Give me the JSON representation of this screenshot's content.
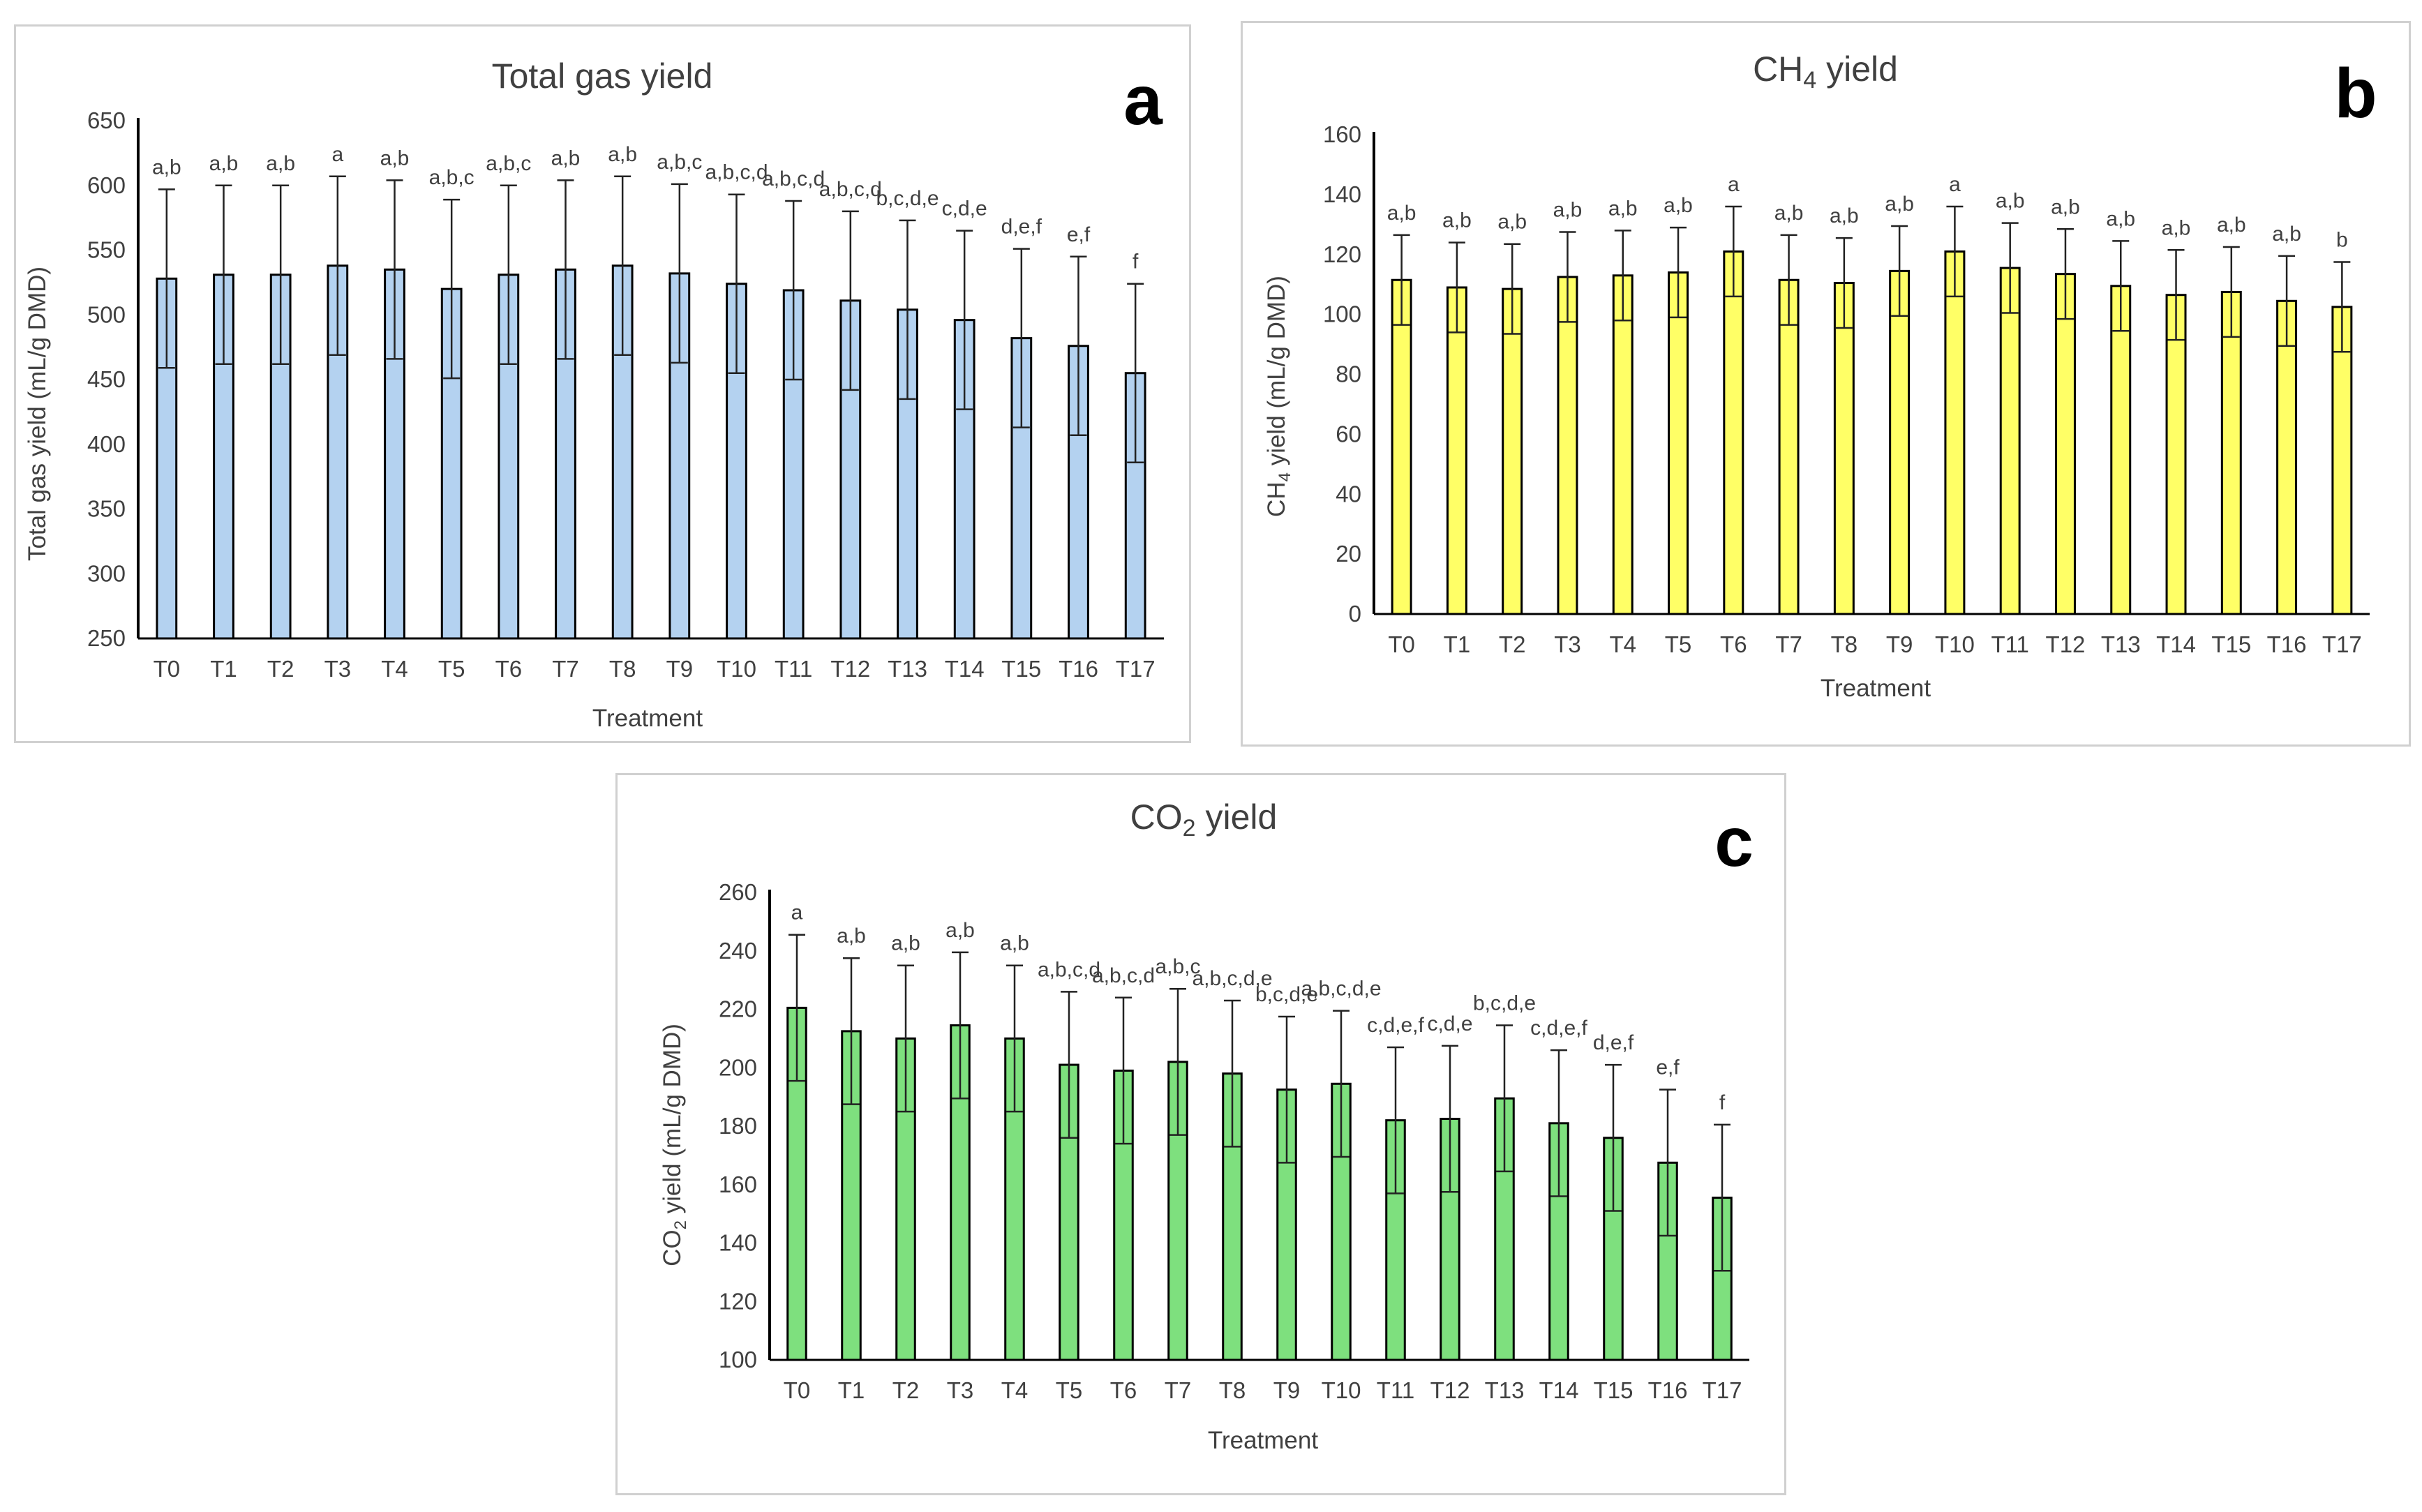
{
  "chart_data": [
    {
      "panel": "a",
      "type": "bar",
      "title": "Total gas yield",
      "title_sub": "",
      "title_end": "",
      "ylabel_pre": "Total gas yield (mL/g DMD)",
      "ylabel_sub": "",
      "ylabel_post": "",
      "xlabel": "Treatment",
      "ylim": [
        250,
        650
      ],
      "yticks": [
        250,
        300,
        350,
        400,
        450,
        500,
        550,
        600,
        650
      ],
      "categories": [
        "T0",
        "T1",
        "T2",
        "T3",
        "T4",
        "T5",
        "T6",
        "T7",
        "T8",
        "T9",
        "T10",
        "T11",
        "T12",
        "T13",
        "T14",
        "T15",
        "T16",
        "T17"
      ],
      "values": [
        528,
        531,
        531,
        538,
        535,
        520,
        531,
        535,
        538,
        532,
        524,
        519,
        511,
        504,
        496,
        482,
        476,
        455
      ],
      "errors": [
        69,
        69,
        69,
        69,
        69,
        69,
        69,
        69,
        69,
        69,
        69,
        69,
        69,
        69,
        69,
        69,
        69,
        69
      ],
      "labels": [
        "a,b",
        "a,b",
        "a,b",
        "a",
        "a,b",
        "a,b,c",
        "a,b,c",
        "a,b",
        "a,b",
        "a,b,c",
        "a,b,c,d",
        "a,b,c,d",
        "a,b,c,d",
        "b,c,d,e",
        "c,d,e",
        "d,e,f",
        "e,f",
        "f"
      ],
      "color": "#b4d2f0"
    },
    {
      "panel": "b",
      "type": "bar",
      "title": "CH",
      "title_sub": "4",
      "title_end": " yield",
      "ylabel_pre": "CH",
      "ylabel_sub": "4",
      "ylabel_post": " yield (mL/g DMD)",
      "xlabel": "Treatment",
      "ylim": [
        0,
        160
      ],
      "yticks": [
        0,
        20,
        40,
        60,
        80,
        100,
        120,
        140,
        160
      ],
      "categories": [
        "T0",
        "T1",
        "T2",
        "T3",
        "T4",
        "T5",
        "T6",
        "T7",
        "T8",
        "T9",
        "T10",
        "T11",
        "T12",
        "T13",
        "T14",
        "T15",
        "T16",
        "T17"
      ],
      "values": [
        111.5,
        109,
        108.5,
        112.5,
        113,
        114,
        121,
        111.5,
        110.5,
        114.5,
        121,
        115.5,
        113.5,
        109.5,
        106.5,
        107.5,
        104.5,
        102.5
      ],
      "errors": [
        15,
        15,
        15,
        15,
        15,
        15,
        15,
        15,
        15,
        15,
        15,
        15,
        15,
        15,
        15,
        15,
        15,
        15
      ],
      "labels": [
        "a,b",
        "a,b",
        "a,b",
        "a,b",
        "a,b",
        "a,b",
        "a",
        "a,b",
        "a,b",
        "a,b",
        "a",
        "a,b",
        "a,b",
        "a,b",
        "a,b",
        "a,b",
        "a,b",
        "b"
      ],
      "color": "#ffff66"
    },
    {
      "panel": "c",
      "type": "bar",
      "title": "CO",
      "title_sub": "2",
      "title_end": " yield",
      "ylabel_pre": "CO",
      "ylabel_sub": "2",
      "ylabel_post": " yield (mL/g DMD)",
      "xlabel": "Treatment",
      "ylim": [
        100,
        260
      ],
      "yticks": [
        100,
        120,
        140,
        160,
        180,
        200,
        220,
        240,
        260
      ],
      "categories": [
        "T0",
        "T1",
        "T2",
        "T3",
        "T4",
        "T5",
        "T6",
        "T7",
        "T8",
        "T9",
        "T10",
        "T11",
        "T12",
        "T13",
        "T14",
        "T15",
        "T16",
        "T17"
      ],
      "values": [
        220.5,
        212.5,
        210,
        214.5,
        210,
        201,
        199,
        202,
        198,
        192.5,
        194.5,
        182,
        182.5,
        189.5,
        181,
        176,
        167.5,
        155.5
      ],
      "errors": [
        25,
        25,
        25,
        25,
        25,
        25,
        25,
        25,
        25,
        25,
        25,
        25,
        25,
        25,
        25,
        25,
        25,
        25
      ],
      "labels": [
        "a",
        "a,b",
        "a,b",
        "a,b",
        "a,b",
        "a,b,c,d",
        "a,b,c,d",
        "a,b,c",
        "a,b,c,d,e",
        "b,c,d,e",
        "a,b,c,d,e",
        "c,d,e,f",
        "c,d,e",
        "b,c,d,e",
        "c,d,e,f",
        "d,e,f",
        "e,f",
        "f"
      ],
      "color": "#7ee07e"
    }
  ]
}
